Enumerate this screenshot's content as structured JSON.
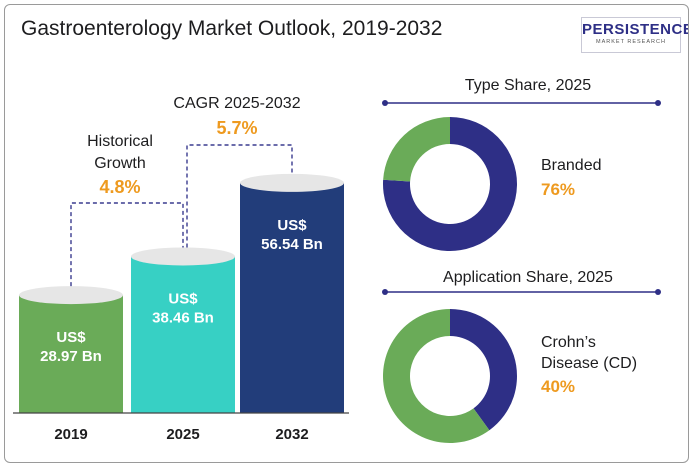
{
  "page": {
    "title": "Gastroenterology Market Outlook, 2019-2032",
    "logo_main": "PERSISTENCE",
    "logo_sub": "MARKET RESEARCH"
  },
  "colors": {
    "accent": "#ee9a1f",
    "navy": "#2e2f86",
    "green": "#6aab58",
    "teal": "#37d0c4",
    "dark_blue": "#223d7a"
  },
  "chart_data": [
    {
      "type": "bar",
      "style": "cylinder",
      "categories": [
        "2019",
        "2025",
        "2032"
      ],
      "values": [
        28.97,
        38.46,
        56.54
      ],
      "value_labels": [
        [
          "US$",
          "28.97 Bn"
        ],
        [
          "US$",
          "38.46 Bn"
        ],
        [
          "US$",
          "56.54 Bn"
        ]
      ],
      "bar_colors": [
        "#6aab58",
        "#37d0c4",
        "#223d7a"
      ],
      "annotations": [
        {
          "label_lines": [
            "Historical",
            "Growth"
          ],
          "value": "4.8%",
          "from": "2019",
          "to": "2025"
        },
        {
          "label_lines": [
            "CAGR 2025-2032"
          ],
          "value": "5.7%",
          "from": "2025",
          "to": "2032"
        }
      ]
    },
    {
      "type": "pie",
      "style": "donut",
      "title": "Type Share, 2025",
      "highlight": {
        "label_lines": [
          "Branded"
        ],
        "value": "76%",
        "percent": 76
      },
      "colors": [
        "#2e2f86",
        "#6aab58"
      ]
    },
    {
      "type": "pie",
      "style": "donut",
      "title": "Application Share, 2025",
      "highlight": {
        "label_lines": [
          "Crohn’s",
          "Disease (CD)"
        ],
        "value": "40%",
        "percent": 40
      },
      "colors": [
        "#2e2f86",
        "#6aab58"
      ]
    }
  ]
}
